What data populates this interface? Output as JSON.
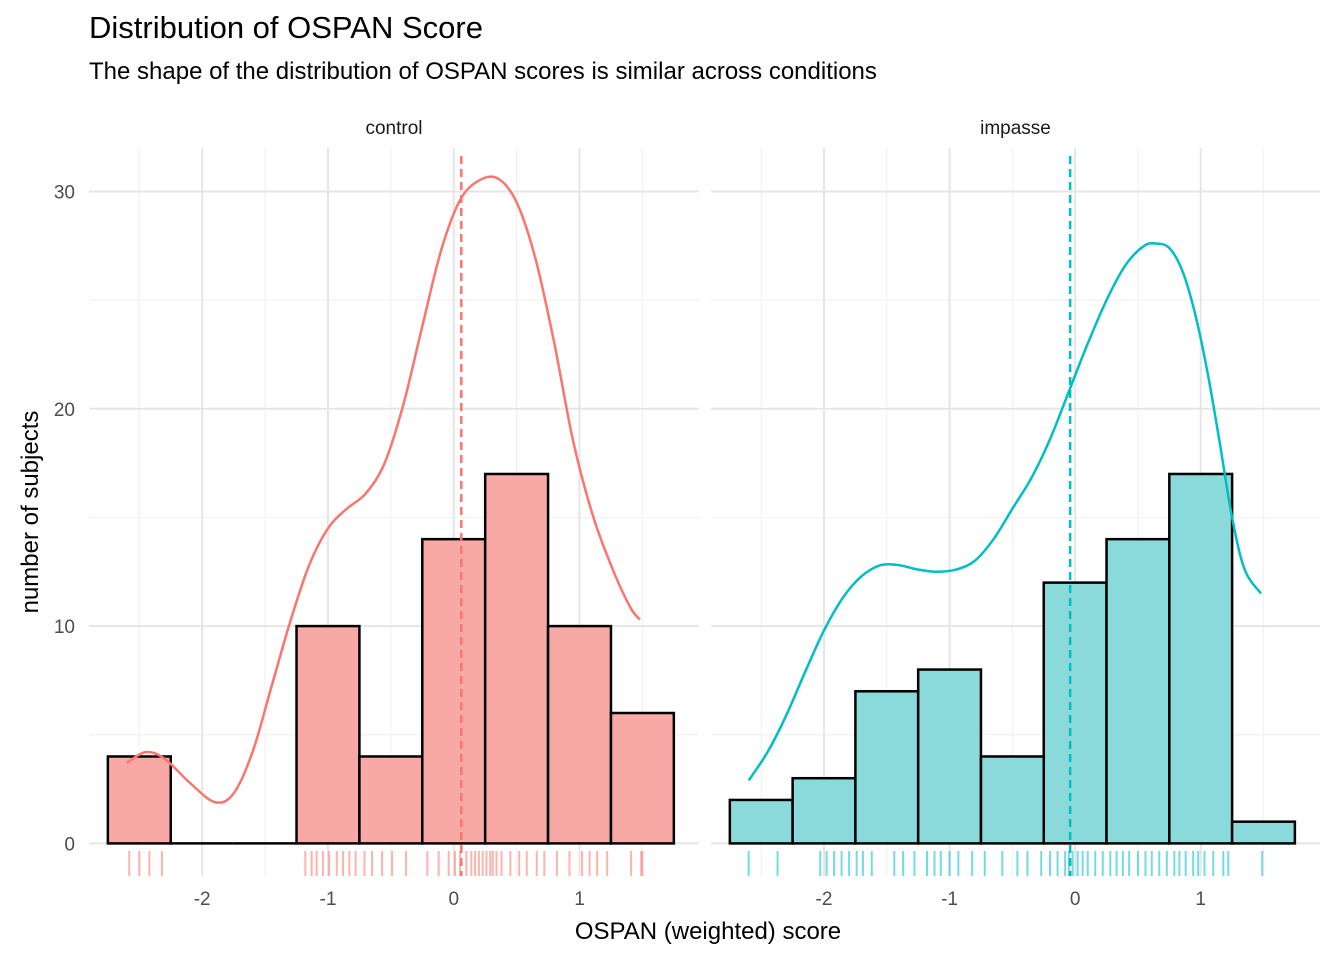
{
  "title": "Distribution of OSPAN Score",
  "subtitle": "The shape of the distribution of OSPAN scores is similar across conditions",
  "chart_data": {
    "type": "bar",
    "subtype": "faceted histogram with density curve, mean line and rug",
    "title": "Distribution of OSPAN Score",
    "subtitle": "The shape of the distribution of OSPAN scores is similar across conditions",
    "xlabel": "OSPAN (weighted) score",
    "ylabel": "number of subjects",
    "xlim": [
      -2.9,
      1.95
    ],
    "ylim": [
      -1.5,
      32
    ],
    "x_ticks": [
      -2,
      -1,
      0,
      1
    ],
    "x_tick_labels": [
      "-2",
      "-1",
      "0",
      "1"
    ],
    "y_ticks": [
      0,
      10,
      20,
      30
    ],
    "y_tick_labels": [
      "0",
      "10",
      "20",
      "30"
    ],
    "grid": true,
    "bin_width": 0.5,
    "facets": [
      {
        "label": "control",
        "color": "#F8766D",
        "fill": "#F8A9A5",
        "bins": [
          {
            "x0": -2.75,
            "x1": -2.25,
            "count": 4
          },
          {
            "x0": -2.25,
            "x1": -1.75,
            "count": 0
          },
          {
            "x0": -1.75,
            "x1": -1.25,
            "count": 0
          },
          {
            "x0": -1.25,
            "x1": -0.75,
            "count": 10
          },
          {
            "x0": -0.75,
            "x1": -0.25,
            "count": 4
          },
          {
            "x0": -0.25,
            "x1": 0.25,
            "count": 14
          },
          {
            "x0": 0.25,
            "x1": 0.75,
            "count": 17
          },
          {
            "x0": 0.75,
            "x1": 1.25,
            "count": 10
          },
          {
            "x0": 1.25,
            "x1": 1.75,
            "count": 6
          }
        ],
        "mean": 0.06,
        "density": [
          [
            -2.6,
            3.7
          ],
          [
            -2.45,
            4.2
          ],
          [
            -2.3,
            3.9
          ],
          [
            -2.1,
            2.8
          ],
          [
            -1.9,
            1.9
          ],
          [
            -1.75,
            2.3
          ],
          [
            -1.6,
            4.2
          ],
          [
            -1.45,
            7.2
          ],
          [
            -1.3,
            10.2
          ],
          [
            -1.15,
            12.8
          ],
          [
            -1.0,
            14.5
          ],
          [
            -0.85,
            15.4
          ],
          [
            -0.7,
            16.1
          ],
          [
            -0.55,
            17.5
          ],
          [
            -0.4,
            20.2
          ],
          [
            -0.25,
            23.8
          ],
          [
            -0.1,
            27.3
          ],
          [
            0.05,
            29.6
          ],
          [
            0.2,
            30.5
          ],
          [
            0.35,
            30.6
          ],
          [
            0.5,
            29.5
          ],
          [
            0.65,
            26.9
          ],
          [
            0.8,
            23.0
          ],
          [
            0.95,
            18.5
          ],
          [
            1.1,
            15.2
          ],
          [
            1.25,
            12.8
          ],
          [
            1.4,
            10.9
          ],
          [
            1.48,
            10.3
          ]
        ],
        "rug": [
          -2.58,
          -2.5,
          -2.42,
          -2.32,
          -1.18,
          -1.13,
          -1.09,
          -1.04,
          -0.99,
          -0.93,
          -0.88,
          -0.83,
          -0.78,
          -0.71,
          -0.65,
          -0.57,
          -0.49,
          -0.38,
          -0.21,
          -0.12,
          -0.04,
          0.01,
          0.05,
          0.1,
          0.14,
          0.17,
          0.2,
          0.23,
          0.26,
          0.29,
          0.31,
          0.34,
          0.38,
          0.45,
          0.52,
          0.58,
          0.66,
          0.72,
          0.82,
          0.92,
          1.02,
          1.08,
          1.14,
          1.22,
          1.41,
          1.49,
          1.5
        ]
      },
      {
        "label": "impasse",
        "color": "#00BFC4",
        "fill": "#8AD9DB",
        "bins": [
          {
            "x0": -2.75,
            "x1": -2.25,
            "count": 2
          },
          {
            "x0": -2.25,
            "x1": -1.75,
            "count": 3
          },
          {
            "x0": -1.75,
            "x1": -1.25,
            "count": 7
          },
          {
            "x0": -1.25,
            "x1": -0.75,
            "count": 8
          },
          {
            "x0": -0.75,
            "x1": -0.25,
            "count": 4
          },
          {
            "x0": -0.25,
            "x1": 0.25,
            "count": 12
          },
          {
            "x0": 0.25,
            "x1": 0.75,
            "count": 14
          },
          {
            "x0": 0.75,
            "x1": 1.25,
            "count": 17
          },
          {
            "x0": 1.25,
            "x1": 1.75,
            "count": 1
          }
        ],
        "mean": -0.04,
        "density": [
          [
            -2.6,
            2.9
          ],
          [
            -2.45,
            4.2
          ],
          [
            -2.3,
            5.9
          ],
          [
            -2.15,
            7.9
          ],
          [
            -2.0,
            9.8
          ],
          [
            -1.85,
            11.3
          ],
          [
            -1.7,
            12.3
          ],
          [
            -1.55,
            12.8
          ],
          [
            -1.4,
            12.8
          ],
          [
            -1.25,
            12.6
          ],
          [
            -1.1,
            12.5
          ],
          [
            -0.95,
            12.6
          ],
          [
            -0.8,
            13.0
          ],
          [
            -0.65,
            14.0
          ],
          [
            -0.5,
            15.4
          ],
          [
            -0.35,
            16.8
          ],
          [
            -0.2,
            18.6
          ],
          [
            -0.05,
            20.8
          ],
          [
            0.1,
            23.0
          ],
          [
            0.25,
            25.0
          ],
          [
            0.4,
            26.6
          ],
          [
            0.55,
            27.5
          ],
          [
            0.65,
            27.6
          ],
          [
            0.75,
            27.4
          ],
          [
            0.85,
            26.4
          ],
          [
            0.95,
            24.5
          ],
          [
            1.05,
            21.8
          ],
          [
            1.15,
            18.5
          ],
          [
            1.25,
            15.0
          ],
          [
            1.35,
            12.6
          ],
          [
            1.48,
            11.5
          ]
        ],
        "rug": [
          -2.6,
          -2.37,
          -2.03,
          -1.98,
          -1.92,
          -1.86,
          -1.8,
          -1.74,
          -1.69,
          -1.62,
          -1.44,
          -1.37,
          -1.28,
          -1.18,
          -1.12,
          -1.07,
          -1.0,
          -0.93,
          -0.82,
          -0.72,
          -0.58,
          -0.46,
          -0.38,
          -0.27,
          -0.2,
          -0.14,
          -0.08,
          -0.05,
          -0.02,
          0.02,
          0.06,
          0.1,
          0.16,
          0.22,
          0.28,
          0.33,
          0.38,
          0.43,
          0.5,
          0.56,
          0.61,
          0.67,
          0.73,
          0.79,
          0.83,
          0.88,
          0.94,
          0.98,
          1.03,
          1.1,
          1.18,
          1.22,
          1.49
        ]
      }
    ]
  }
}
